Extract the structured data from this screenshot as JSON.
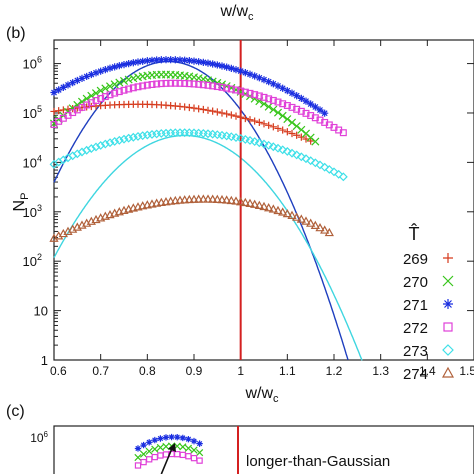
{
  "top_xlabel": "w/w",
  "top_xlabel_sub": "c",
  "panel_b": {
    "label": "(b)",
    "chart_data": {
      "type": "scatter",
      "xlabel": "w/w",
      "xlabel_sub": "c",
      "ylabel": "N",
      "ylabel_sub": "P",
      "xlim": [
        0.6,
        1.5
      ],
      "ylim": [
        1,
        3000000
      ],
      "yscale": "log",
      "x_ticks": [
        0.6,
        0.7,
        0.8,
        0.9,
        1,
        1.1,
        1.2,
        1.3,
        1.4,
        1.5
      ],
      "x_tick_labels": [
        "0.6",
        "0.7",
        "0.8",
        "0.9",
        "1",
        "1.1",
        "1.2",
        "1.3",
        "1.4",
        "1.5"
      ],
      "y_ticks": [
        1,
        10,
        100,
        1000,
        10000,
        100000,
        1000000
      ],
      "y_tick_labels": [
        {
          "b": "1",
          "e": ""
        },
        {
          "b": "10",
          "e": ""
        },
        {
          "b": "10",
          "e": "2"
        },
        {
          "b": "10",
          "e": "3"
        },
        {
          "b": "10",
          "e": "4"
        },
        {
          "b": "10",
          "e": "5"
        },
        {
          "b": "10",
          "e": "6"
        }
      ],
      "vline": {
        "x": 1.0,
        "color": "#d42020"
      },
      "legend": {
        "title": "T̂",
        "placement": "right"
      },
      "series": [
        {
          "name": "269",
          "color": "#d63a1c",
          "marker": "plus",
          "x0": 0.6,
          "dx": 0.01,
          "peak": 150000.0,
          "peak_x": 0.78,
          "sigma_left": 0.22,
          "sigma_right": 0.2,
          "base": 45000.0,
          "cut": 1.15
        },
        {
          "name": "270",
          "color": "#37c51a",
          "marker": "cross",
          "x0": 0.6,
          "dx": 0.01,
          "peak": 600000.0,
          "peak_x": 0.835,
          "sigma_left": 0.11,
          "sigma_right": 0.13,
          "base": 35000.0,
          "cut": 1.16
        },
        {
          "name": "271",
          "color": "#1a2ee0",
          "marker": "star",
          "x0": 0.6,
          "dx": 0.01,
          "peak": 1200000.0,
          "peak_x": 0.845,
          "sigma_left": 0.14,
          "sigma_right": 0.15,
          "base": 40000.0,
          "cut": 1.18
        },
        {
          "name": "272",
          "color": "#e040d8",
          "marker": "square",
          "x0": 0.6,
          "dx": 0.01,
          "peak": 400000.0,
          "peak_x": 0.855,
          "sigma_left": 0.13,
          "sigma_right": 0.17,
          "base": 16000.0,
          "cut": 1.22
        },
        {
          "name": "273",
          "color": "#3fe0e8",
          "marker": "diamond",
          "x0": 0.6,
          "dx": 0.01,
          "peak": 40000.0,
          "peak_x": 0.875,
          "sigma_left": 0.16,
          "sigma_right": 0.17,
          "base": 550,
          "cut": 1.22
        },
        {
          "name": "274",
          "color": "#b0603a",
          "marker": "triangle",
          "x0": 0.6,
          "dx": 0.01,
          "peak": 1800,
          "peak_x": 0.925,
          "sigma_left": 0.17,
          "sigma_right": 0.15,
          "base": 3,
          "cut": 1.19
        }
      ],
      "gaussian_fits": [
        {
          "color": "#1f3fbf",
          "peak": 1100000.0,
          "mu": 0.845,
          "sigma": 0.073
        },
        {
          "color": "#3fd6e0",
          "peak": 35000.0,
          "mu": 0.88,
          "sigma": 0.083
        }
      ]
    }
  },
  "panel_c": {
    "label": "(c)",
    "y_top_tick": {
      "b": "10",
      "e": "6"
    },
    "annotation": "longer-than-Gaussian"
  }
}
